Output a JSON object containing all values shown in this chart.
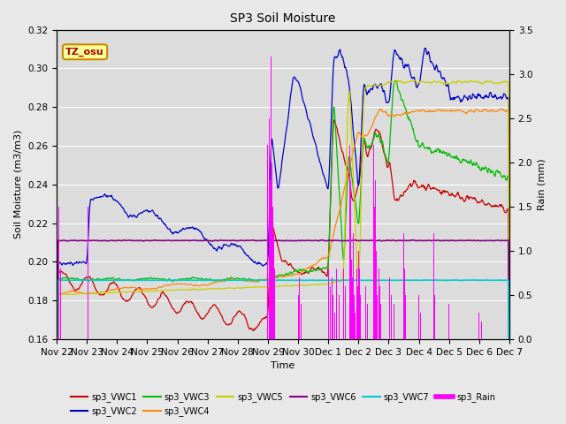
{
  "title": "SP3 Soil Moisture",
  "ylabel_left": "Soil Moisture (m3/m3)",
  "ylabel_right": "Rain (mm)",
  "xlabel": "Time",
  "ylim_left": [
    0.16,
    0.32
  ],
  "ylim_right": [
    0.0,
    3.5
  ],
  "fig_bg_color": "#e8e8e8",
  "plot_bg_color": "#dcdcdc",
  "colors": {
    "VWC1": "#cc0000",
    "VWC2": "#0000cc",
    "VWC3": "#00bb00",
    "VWC4": "#ff8800",
    "VWC5": "#cccc00",
    "VWC6": "#880088",
    "VWC7": "#00cccc",
    "Rain": "#ff00ff"
  },
  "tz_label": "TZ_osu",
  "tz_bg": "#ffff99",
  "tz_border": "#cc8800",
  "xtick_positions": [
    0,
    3,
    6,
    9,
    12,
    15,
    18,
    21,
    24,
    27,
    30,
    33,
    36,
    39,
    42,
    45
  ],
  "xtick_labels": [
    "Nov 22",
    "Nov 23",
    "Nov 24",
    "Nov 25",
    "Nov 26",
    "Nov 27",
    "Nov 28",
    "Nov 29",
    "Nov 30",
    "Dec 1",
    "Dec 2",
    "Dec 3",
    "Dec 4",
    "Dec 5",
    "Dec 6",
    "Dec 7"
  ],
  "yticks_left": [
    0.16,
    0.18,
    0.2,
    0.22,
    0.24,
    0.26,
    0.28,
    0.3,
    0.32
  ],
  "yticks_right": [
    0.0,
    0.5,
    1.0,
    1.5,
    2.0,
    2.5,
    3.0,
    3.5
  ]
}
